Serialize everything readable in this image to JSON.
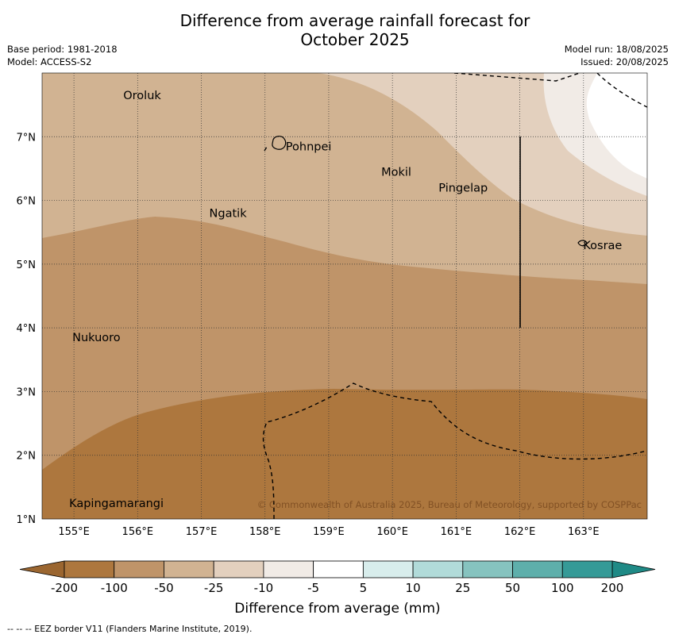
{
  "title_line1": "Difference from average rainfall forecast for",
  "title_line2": "October 2025",
  "meta_left": {
    "base_period": "Base period: 1981-2018",
    "model": "Model: ACCESS-S2"
  },
  "meta_right": {
    "model_run": "Model run: 18/08/2025",
    "issued": "Issued: 20/08/2025"
  },
  "map": {
    "lon_range": [
      154.5,
      164.0
    ],
    "lat_range": [
      1.0,
      8.0
    ],
    "lon_ticks": [
      "155°E",
      "156°E",
      "157°E",
      "158°E",
      "159°E",
      "160°E",
      "161°E",
      "162°E",
      "163°E"
    ],
    "lat_ticks": [
      "1°N",
      "2°N",
      "3°N",
      "4°N",
      "5°N",
      "6°N",
      "7°N"
    ],
    "places": [
      {
        "name": "Oroluk",
        "lon": 155.75,
        "lat": 7.65
      },
      {
        "name": "Pohnpei",
        "lon": 158.3,
        "lat": 6.85
      },
      {
        "name": "Mokil",
        "lon": 159.8,
        "lat": 6.45
      },
      {
        "name": "Pingelap",
        "lon": 160.7,
        "lat": 6.2
      },
      {
        "name": "Ngatik",
        "lon": 157.1,
        "lat": 5.8
      },
      {
        "name": "Kosrae",
        "lon": 162.97,
        "lat": 5.3
      },
      {
        "name": "Nukuoro",
        "lon": 154.95,
        "lat": 3.85
      },
      {
        "name": "Kapingamarangi",
        "lon": 154.9,
        "lat": 1.25
      }
    ],
    "copyright": "© Commonwealth of Australia 2025, Bureau of Meteorology, supported by COSPPac"
  },
  "colorbar": {
    "labels": [
      "-200",
      "-100",
      "-50",
      "-25",
      "-10",
      "-5",
      "5",
      "10",
      "25",
      "50",
      "100",
      "200"
    ],
    "colors": [
      "#ad773e",
      "#bf9469",
      "#d1b392",
      "#e3d0be",
      "#f1ebe6",
      "#ffffff",
      "#d8edec",
      "#b1dbd9",
      "#86c3bf",
      "#5eafab",
      "#359a97"
    ],
    "low_extend_color": "#9b6630",
    "high_extend_color": "#1f8a86",
    "label": "Difference from average (mm)"
  },
  "footnote": "--  --  -- EEZ border V11 (Flanders Marine Institute, 2019)."
}
